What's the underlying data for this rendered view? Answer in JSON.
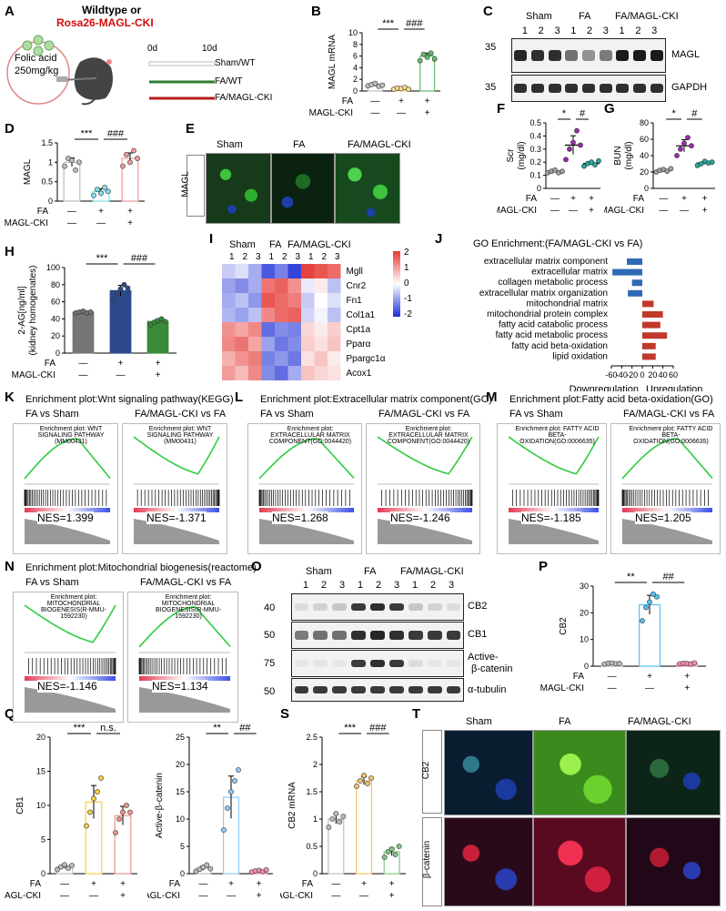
{
  "panels": {
    "A": {
      "label": "A",
      "title_line1": "Wildtype or",
      "title_line2": "Rosa26-MAGL-CKI",
      "drug": "Folic acid",
      "dose": "250mg/kg",
      "timeline": {
        "start": "0d",
        "end": "10d"
      },
      "groups": [
        {
          "name": "Sham/WT",
          "color": "#bbbbbb"
        },
        {
          "name": "FA/WT",
          "color": "#2e7d32"
        },
        {
          "name": "FA/MAGL-CKI",
          "color": "#b71c1c"
        }
      ]
    },
    "B": {
      "label": "B"
    },
    "C": {
      "label": "C",
      "groups": [
        "Sham",
        "FA",
        "FA/MAGL-CKI"
      ],
      "lanes": [
        "1",
        "2",
        "3",
        "1",
        "2",
        "3",
        "1",
        "2",
        "3"
      ],
      "markers": [
        "35",
        "35"
      ],
      "proteins": [
        "MAGL",
        "GAPDH"
      ]
    },
    "D": {
      "label": "D"
    },
    "E": {
      "label": "E",
      "row_label": "MAGL",
      "columns": [
        "Sham",
        "FA",
        "FA/MAGL-CKI"
      ]
    },
    "F": {
      "label": "F"
    },
    "G": {
      "label": "G"
    },
    "H": {
      "label": "H"
    },
    "I": {
      "label": "I",
      "groups": [
        "Sham",
        "FA",
        "FA/MAGL-CKI"
      ],
      "replicates": [
        "1",
        "2",
        "3",
        "1",
        "2",
        "3",
        "1",
        "2",
        "3"
      ],
      "genes": [
        "Mgll",
        "Cnr2",
        "Fn1",
        "Col1a1",
        "Cpt1a",
        "Pparα",
        "Ppargc1α",
        "Acox1"
      ],
      "scale_ticks": [
        "2",
        "1",
        "0",
        "-1",
        "-2"
      ],
      "colors": {
        "high": "#e53935",
        "mid": "#ffffff",
        "low": "#1e2fd6"
      }
    },
    "J": {
      "label": "J",
      "title": "GO Enrichment:(FA/MAGL-CKI vs FA)",
      "xlabel_left": "Downregulation",
      "xlabel_right": "Upregulation"
    },
    "K": {
      "label": "K",
      "title": "Enrichment plot:Wnt signaling pathway(KEGG)",
      "left_sub": "FA vs Sham",
      "right_sub": "FA/MAGL-CKI vs FA",
      "left_inner": "Enrichment plot: WNT SIGNALING PATHWAY (MM00431)",
      "right_inner": "Enrichment plot: WNT SIGNALING PATHWAY (MM00431)",
      "left_nes": "NES=1.399",
      "right_nes": "NES=-1.371"
    },
    "L": {
      "label": "L",
      "title": "Enrichment plot:Extracellular matrix component(GO)",
      "left_sub": "FA vs Sham",
      "right_sub": "FA/MAGL-CKI vs FA",
      "left_inner": "Enrichment plot: EXTRACELLULAR MATRIX COMPONENT(GO:0044420)",
      "right_inner": "Enrichment plot: EXTRACELLULAR MATRIX COMPONENT(GO:0044420)",
      "left_nes": "NES=1.268",
      "right_nes": "NES=-1.246"
    },
    "M": {
      "label": "M",
      "title": "Enrichment plot:Fatty acid beta-oxidation(GO)",
      "left_sub": "FA vs Sham",
      "right_sub": "FA/MAGL-CKI vs FA",
      "left_inner": "Enrichment plot: FATTY ACID BETA-OXIDATION(GO:0006635)",
      "right_inner": "Enrichment plot: FATTY ACID BETA-OXIDATION(GO:0006635)",
      "left_nes": "NES=-1.185",
      "right_nes": "NES=1.205"
    },
    "N": {
      "label": "N",
      "title": "Enrichment plot:Mitochondrial biogenesis(reactome)",
      "left_sub": "FA vs Sham",
      "right_sub": "FA/MAGL-CKI vs FA",
      "left_inner": "Enrichment plot: MITOCHONDRIAL BIOGENESIS(R-MMU-1592230)",
      "right_inner": "Enrichment plot: MITOCHONDRIAL BIOGENESIS(R-MMU-1592230)",
      "left_nes": "NES=-1.146",
      "right_nes": "NES=1.134"
    },
    "O": {
      "label": "O",
      "groups": [
        "Sham",
        "FA",
        "FA/MAGL-CKI"
      ],
      "lanes": [
        "1",
        "2",
        "3",
        "1",
        "2",
        "3",
        "1",
        "2",
        "3"
      ],
      "markers": [
        "40",
        "50",
        "75",
        "50"
      ],
      "proteins": [
        "CB2",
        "CB1",
        "Active-",
        "α-tubulin"
      ],
      "protein_sub": "β-catenin"
    },
    "P": {
      "label": "P"
    },
    "Q": {
      "label": "Q"
    },
    "R": {
      "label": "R"
    },
    "S": {
      "label": "S"
    },
    "T": {
      "label": "T",
      "columns": [
        "Sham",
        "FA",
        "FA/MAGL-CKI"
      ],
      "rows": [
        "CB2",
        "β-catenin"
      ]
    }
  },
  "treatment": {
    "fa_label": "FA",
    "cki_label": "MAGL-CKI",
    "fa": [
      "—",
      "+",
      "+"
    ],
    "cki": [
      "—",
      "—",
      "+"
    ]
  },
  "chart_data": [
    {
      "id": "B",
      "type": "bar",
      "ylabel": "MAGL mRNA",
      "categories": [
        "Sham",
        "FA",
        "FA/MAGL-CKI"
      ],
      "values": [
        1.0,
        0.4,
        6.0
      ],
      "ylim": [
        0,
        10
      ],
      "yticks": [
        0,
        2,
        4,
        6,
        8,
        10
      ],
      "points": [
        [
          0.9,
          1.1,
          1.3,
          0.8,
          1.0
        ],
        [
          0.3,
          0.5,
          0.4,
          0.6,
          0.3
        ],
        [
          5.2,
          6.3,
          5.8,
          6.5,
          5.5
        ]
      ],
      "colors": [
        "#bdbdbd",
        "#ffe08a",
        "#66bb6a"
      ],
      "sig": [
        {
          "text": "***",
          "from": 0,
          "to": 1
        },
        {
          "text": "###",
          "from": 1,
          "to": 2
        }
      ]
    },
    {
      "id": "D",
      "type": "bar",
      "ylabel": "MAGL",
      "categories": [
        "Sham",
        "FA",
        "FA/MAGL-CKI"
      ],
      "values": [
        1.0,
        0.25,
        1.1
      ],
      "ylim": [
        0,
        1.5
      ],
      "yticks": [
        0.0,
        0.5,
        1.0,
        1.5
      ],
      "points": [
        [
          0.9,
          1.1,
          1.05,
          0.8,
          1.0
        ],
        [
          0.15,
          0.3,
          0.2,
          0.35,
          0.25
        ],
        [
          0.9,
          1.2,
          1.0,
          1.3,
          1.1
        ]
      ],
      "colors": [
        "#bdbdbd",
        "#80deea",
        "#ef9a9a"
      ],
      "sig": [
        {
          "text": "***",
          "from": 0,
          "to": 1
        },
        {
          "text": "###",
          "from": 1,
          "to": 2
        }
      ]
    },
    {
      "id": "F",
      "type": "scatter",
      "ylabel": "Scr",
      "ylabel2": "(mg/dl)",
      "categories": [
        "Sham",
        "FA",
        "FA/MAGL-CKI"
      ],
      "values": [
        0.13,
        0.33,
        0.19
      ],
      "ylim": [
        0.0,
        0.5
      ],
      "yticks": [
        0.0,
        0.1,
        0.2,
        0.3,
        0.4,
        0.5
      ],
      "points": [
        [
          0.12,
          0.13,
          0.14,
          0.12,
          0.13
        ],
        [
          0.22,
          0.3,
          0.35,
          0.44,
          0.33
        ],
        [
          0.17,
          0.19,
          0.2,
          0.18,
          0.21
        ]
      ],
      "colors": [
        "#9e9e9e",
        "#9c27b0",
        "#26a69a"
      ],
      "sig": [
        {
          "text": "*",
          "from": 0,
          "to": 1
        },
        {
          "text": "#",
          "from": 1,
          "to": 2
        }
      ]
    },
    {
      "id": "G",
      "type": "scatter",
      "ylabel": "BUN",
      "ylabel2": "(mg/dl)",
      "categories": [
        "Sham",
        "FA",
        "FA/MAGL-CKI"
      ],
      "values": [
        22,
        52,
        31
      ],
      "ylim": [
        0,
        80
      ],
      "yticks": [
        0,
        20,
        40,
        60,
        80
      ],
      "points": [
        [
          20,
          22,
          23,
          21,
          24
        ],
        [
          40,
          48,
          55,
          62,
          52
        ],
        [
          28,
          30,
          33,
          31,
          32
        ]
      ],
      "colors": [
        "#9e9e9e",
        "#9c27b0",
        "#26a69a"
      ],
      "sig": [
        {
          "text": "*",
          "from": 0,
          "to": 1
        },
        {
          "text": "#",
          "from": 1,
          "to": 2
        }
      ]
    },
    {
      "id": "H",
      "type": "bar",
      "ylabel": "2-AG[ng/ml]",
      "ylabel2": "(kidney homogenates)",
      "categories": [
        "Sham",
        "FA",
        "FA/MAGL-CKI"
      ],
      "values": [
        48,
        73,
        37
      ],
      "ylim": [
        0,
        100
      ],
      "yticks": [
        0,
        20,
        40,
        60,
        80,
        100
      ],
      "points": [
        [
          47,
          48,
          49,
          47,
          48
        ],
        [
          62,
          70,
          75,
          80,
          76
        ],
        [
          33,
          36,
          38,
          40,
          37
        ]
      ],
      "colors": [
        "#757575",
        "#2c4a8a",
        "#3a8a3a"
      ],
      "sig": [
        {
          "text": "***",
          "from": 0,
          "to": 1
        },
        {
          "text": "###",
          "from": 1,
          "to": 2
        }
      ]
    },
    {
      "id": "I",
      "type": "heatmap",
      "rows": [
        "Mgll",
        "Cnr2",
        "Fn1",
        "Col1a1",
        "Cpt1a",
        "Pparα",
        "Ppargc1α",
        "Acox1"
      ],
      "cols": [
        "Sham-1",
        "Sham-2",
        "Sham-3",
        "FA-1",
        "FA-2",
        "FA-3",
        "CKI-1",
        "CKI-2",
        "CKI-3"
      ],
      "values": [
        [
          -0.5,
          -0.3,
          -0.8,
          -1.6,
          -1.2,
          -1.8,
          1.9,
          1.7,
          1.5
        ],
        [
          -0.9,
          -1.1,
          -0.8,
          1.4,
          1.6,
          1.1,
          -0.2,
          0.2,
          -0.6
        ],
        [
          -0.8,
          -0.6,
          -1.0,
          1.7,
          1.5,
          1.3,
          -0.5,
          0.0,
          -0.3
        ],
        [
          -0.7,
          -0.9,
          -0.6,
          1.2,
          1.5,
          1.6,
          -0.4,
          -0.1,
          -0.6
        ],
        [
          1.1,
          0.9,
          1.2,
          -1.4,
          -1.1,
          -1.2,
          0.4,
          0.2,
          0.5
        ],
        [
          1.2,
          1.4,
          0.9,
          -0.9,
          -1.3,
          -1.1,
          0.5,
          0.3,
          0.6
        ],
        [
          0.8,
          1.1,
          1.3,
          -1.2,
          -1.0,
          -1.3,
          0.3,
          0.6,
          0.2
        ],
        [
          1.0,
          0.7,
          1.2,
          -1.1,
          -1.4,
          -0.8,
          0.6,
          0.4,
          0.3
        ]
      ],
      "zlim": [
        -2,
        2
      ]
    },
    {
      "id": "J",
      "type": "bar",
      "title": "GO Enrichment:(FA/MAGL-CKI vs FA)",
      "categories": [
        "extracellular matrix component",
        "extracellular matrix",
        "collagen metabolic process",
        "extracellular matrix organization",
        "mitochondrial matrix",
        "mitochondrial protein complex",
        "fatty acid catabolic process",
        "fatty acid metabolic process",
        "fatty acid beta-oxidation",
        "lipid oxidation"
      ],
      "values": [
        -30,
        -58,
        -20,
        -28,
        22,
        40,
        35,
        48,
        26,
        26
      ],
      "xlim": [
        -60,
        60
      ],
      "xticks": [
        -60,
        -40,
        -20,
        0,
        20,
        40,
        60
      ],
      "colors": {
        "down": "#2e6ab5",
        "up": "#c0392b"
      }
    },
    {
      "id": "P",
      "type": "bar",
      "ylabel": "CB2",
      "categories": [
        "Sham",
        "FA",
        "FA/MAGL-CKI"
      ],
      "values": [
        1.0,
        23.0,
        1.0
      ],
      "ylim": [
        0,
        30
      ],
      "yticks": [
        0,
        10,
        20,
        30
      ],
      "points": [
        [
          0.8,
          1.1,
          1.2,
          0.9,
          1.0
        ],
        [
          17,
          22,
          24,
          27,
          26
        ],
        [
          0.9,
          1.1,
          1.0,
          0.8,
          1.2
        ]
      ],
      "colors": [
        "#bdbdbd",
        "#4fc3f7",
        "#f48fb1"
      ],
      "sig": [
        {
          "text": "**",
          "from": 0,
          "to": 1
        },
        {
          "text": "##",
          "from": 1,
          "to": 2
        }
      ]
    },
    {
      "id": "Q",
      "type": "bar",
      "ylabel": "CB1",
      "categories": [
        "Sham",
        "FA",
        "FA/MAGL-CKI"
      ],
      "values": [
        1.0,
        10.5,
        8.5
      ],
      "ylim": [
        0,
        20
      ],
      "yticks": [
        0,
        5,
        10,
        15,
        20
      ],
      "points": [
        [
          0.6,
          1.0,
          1.3,
          0.8,
          1.2
        ],
        [
          7,
          9,
          11,
          12,
          14
        ],
        [
          6,
          8,
          9,
          10,
          9
        ]
      ],
      "colors": [
        "#bdbdbd",
        "#f4d03f",
        "#f1948a"
      ],
      "sig": [
        {
          "text": "***",
          "from": 0,
          "to": 1
        },
        {
          "text": "n.s.",
          "from": 1,
          "to": 2
        }
      ]
    },
    {
      "id": "R",
      "type": "bar",
      "ylabel": "Active-β-catenin",
      "categories": [
        "Sham",
        "FA",
        "FA/MAGL-CKI"
      ],
      "values": [
        1.0,
        14.0,
        0.5
      ],
      "ylim": [
        0,
        25
      ],
      "yticks": [
        0,
        5,
        10,
        15,
        20,
        25
      ],
      "points": [
        [
          0.4,
          0.8,
          1.2,
          1.6,
          0.9
        ],
        [
          8,
          12,
          15,
          17,
          19
        ],
        [
          0.3,
          0.5,
          0.6,
          0.4,
          0.7
        ]
      ],
      "colors": [
        "#bdbdbd",
        "#90caf9",
        "#f48fb1"
      ],
      "sig": [
        {
          "text": "**",
          "from": 0,
          "to": 1
        },
        {
          "text": "##",
          "from": 1,
          "to": 2
        }
      ]
    },
    {
      "id": "S",
      "type": "bar",
      "ylabel": "CB2 mRNA",
      "categories": [
        "Sham",
        "FA",
        "FA/MAGL-CKI"
      ],
      "values": [
        1.0,
        1.7,
        0.4
      ],
      "ylim": [
        0,
        2.5
      ],
      "yticks": [
        0.0,
        0.5,
        1.0,
        1.5,
        2.0,
        2.5
      ],
      "points": [
        [
          0.85,
          1.0,
          1.1,
          0.95,
          1.05
        ],
        [
          1.6,
          1.7,
          1.8,
          1.65,
          1.75
        ],
        [
          0.3,
          0.4,
          0.45,
          0.35,
          0.5
        ]
      ],
      "colors": [
        "#bdbdbd",
        "#f5c16c",
        "#81c784"
      ],
      "sig": [
        {
          "text": "***",
          "from": 0,
          "to": 1
        },
        {
          "text": "###",
          "from": 1,
          "to": 2
        }
      ]
    }
  ]
}
